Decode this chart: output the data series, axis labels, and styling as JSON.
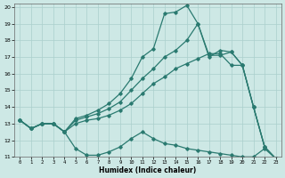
{
  "xlabel": "Humidex (Indice chaleur)",
  "ylabel": "",
  "xlim": [
    -0.5,
    23.5
  ],
  "ylim": [
    11,
    20.2
  ],
  "yticks": [
    11,
    12,
    13,
    14,
    15,
    16,
    17,
    18,
    19,
    20
  ],
  "xticks": [
    0,
    1,
    2,
    3,
    4,
    5,
    6,
    7,
    8,
    9,
    10,
    11,
    12,
    13,
    14,
    15,
    16,
    17,
    18,
    19,
    20,
    21,
    22,
    23
  ],
  "background_color": "#cde8e5",
  "grid_color": "#aacfcc",
  "line_color": "#2a7a70",
  "line1_y": [
    13.2,
    12.7,
    13.0,
    13.0,
    12.5,
    11.5,
    11.1,
    11.1,
    11.3,
    11.6,
    12.1,
    12.5,
    12.1,
    11.8,
    11.7,
    11.5,
    11.4,
    11.3,
    11.2,
    11.1,
    11.0,
    11.0,
    11.5,
    10.9
  ],
  "line2_y": [
    13.2,
    12.7,
    13.0,
    13.0,
    12.5,
    13.0,
    13.2,
    13.3,
    13.5,
    13.8,
    14.2,
    14.8,
    15.4,
    15.8,
    16.3,
    16.6,
    16.9,
    17.2,
    17.2,
    16.5,
    16.5,
    14.0,
    11.6,
    10.9
  ],
  "line3_y": [
    13.2,
    12.7,
    13.0,
    13.0,
    12.5,
    13.2,
    13.4,
    13.6,
    13.9,
    14.3,
    15.0,
    15.7,
    16.3,
    17.0,
    17.4,
    18.0,
    19.0,
    17.1,
    17.1,
    17.3,
    16.5,
    14.0,
    11.6,
    10.9
  ],
  "line4_y": [
    13.2,
    12.7,
    13.0,
    13.0,
    12.5,
    13.3,
    13.5,
    13.8,
    14.2,
    14.8,
    15.7,
    17.0,
    17.5,
    19.6,
    19.7,
    20.1,
    19.0,
    17.0,
    17.4,
    17.3,
    16.5,
    14.0,
    11.6,
    10.9
  ]
}
